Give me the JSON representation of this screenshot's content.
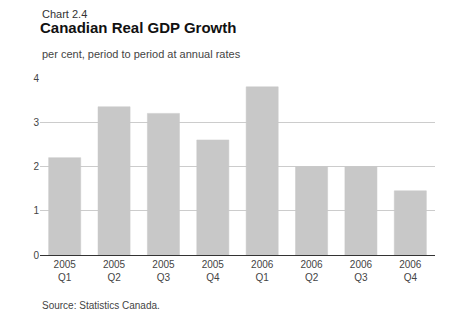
{
  "chart_data": {
    "type": "bar",
    "label": "Chart 2.4",
    "title": "Canadian Real GDP Growth",
    "subtitle": "per cent, period to period at annual rates",
    "source": "Source: Statistics Canada.",
    "categories": [
      "2005\nQ1",
      "2005\nQ2",
      "2005\nQ3",
      "2005\nQ4",
      "2006\nQ1",
      "2006\nQ2",
      "2006\nQ3",
      "2006\nQ4"
    ],
    "values": [
      2.2,
      3.35,
      3.2,
      2.6,
      3.8,
      2.0,
      2.0,
      1.45
    ],
    "color": "#c8c8c8",
    "ylim": [
      0,
      4
    ],
    "yticks": [
      0,
      1,
      2,
      3,
      4
    ],
    "grid": true
  }
}
